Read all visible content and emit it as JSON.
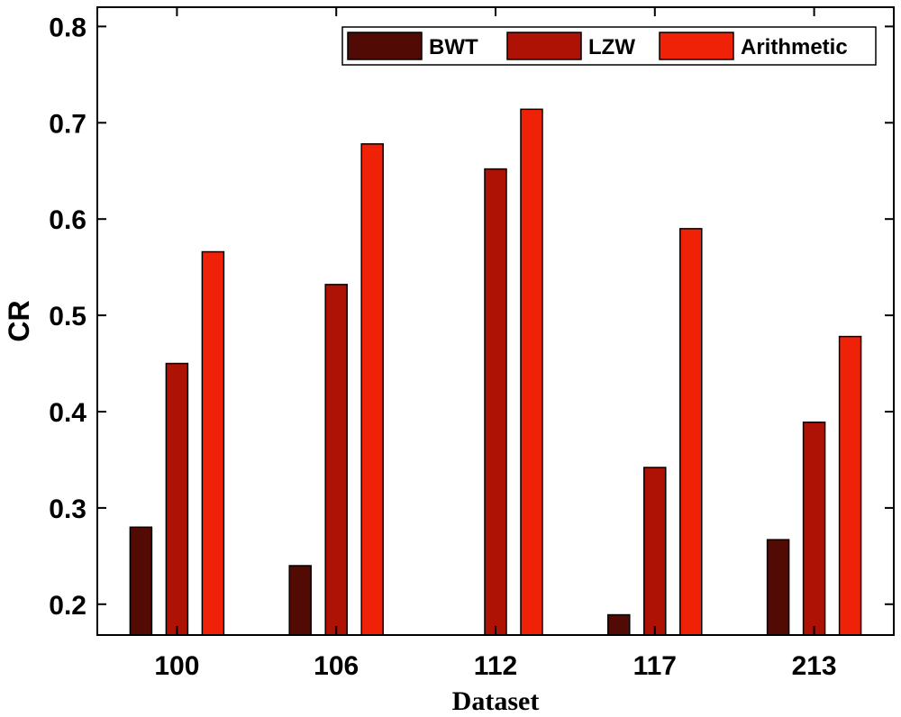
{
  "chart_data": {
    "type": "bar",
    "title": "",
    "xlabel": "Dataset",
    "ylabel": "CR",
    "categories": [
      "100",
      "106",
      "112",
      "117",
      "213"
    ],
    "series": [
      {
        "name": "BWT",
        "color": "#520a05",
        "values": [
          0.28,
          0.24,
          null,
          0.189,
          0.267
        ]
      },
      {
        "name": "LZW",
        "color": "#ad1205",
        "values": [
          0.45,
          0.532,
          0.652,
          0.342,
          0.389
        ]
      },
      {
        "name": "Arithmetic",
        "color": "#ef2208",
        "values": [
          0.566,
          0.678,
          0.714,
          0.59,
          0.478
        ]
      }
    ],
    "ylim": [
      0.168,
      0.82
    ],
    "yticks": [
      "0.2",
      "0.3",
      "0.4",
      "0.5",
      "0.6",
      "0.7",
      "0.8"
    ],
    "grid": false,
    "legend_position": "top-right"
  }
}
